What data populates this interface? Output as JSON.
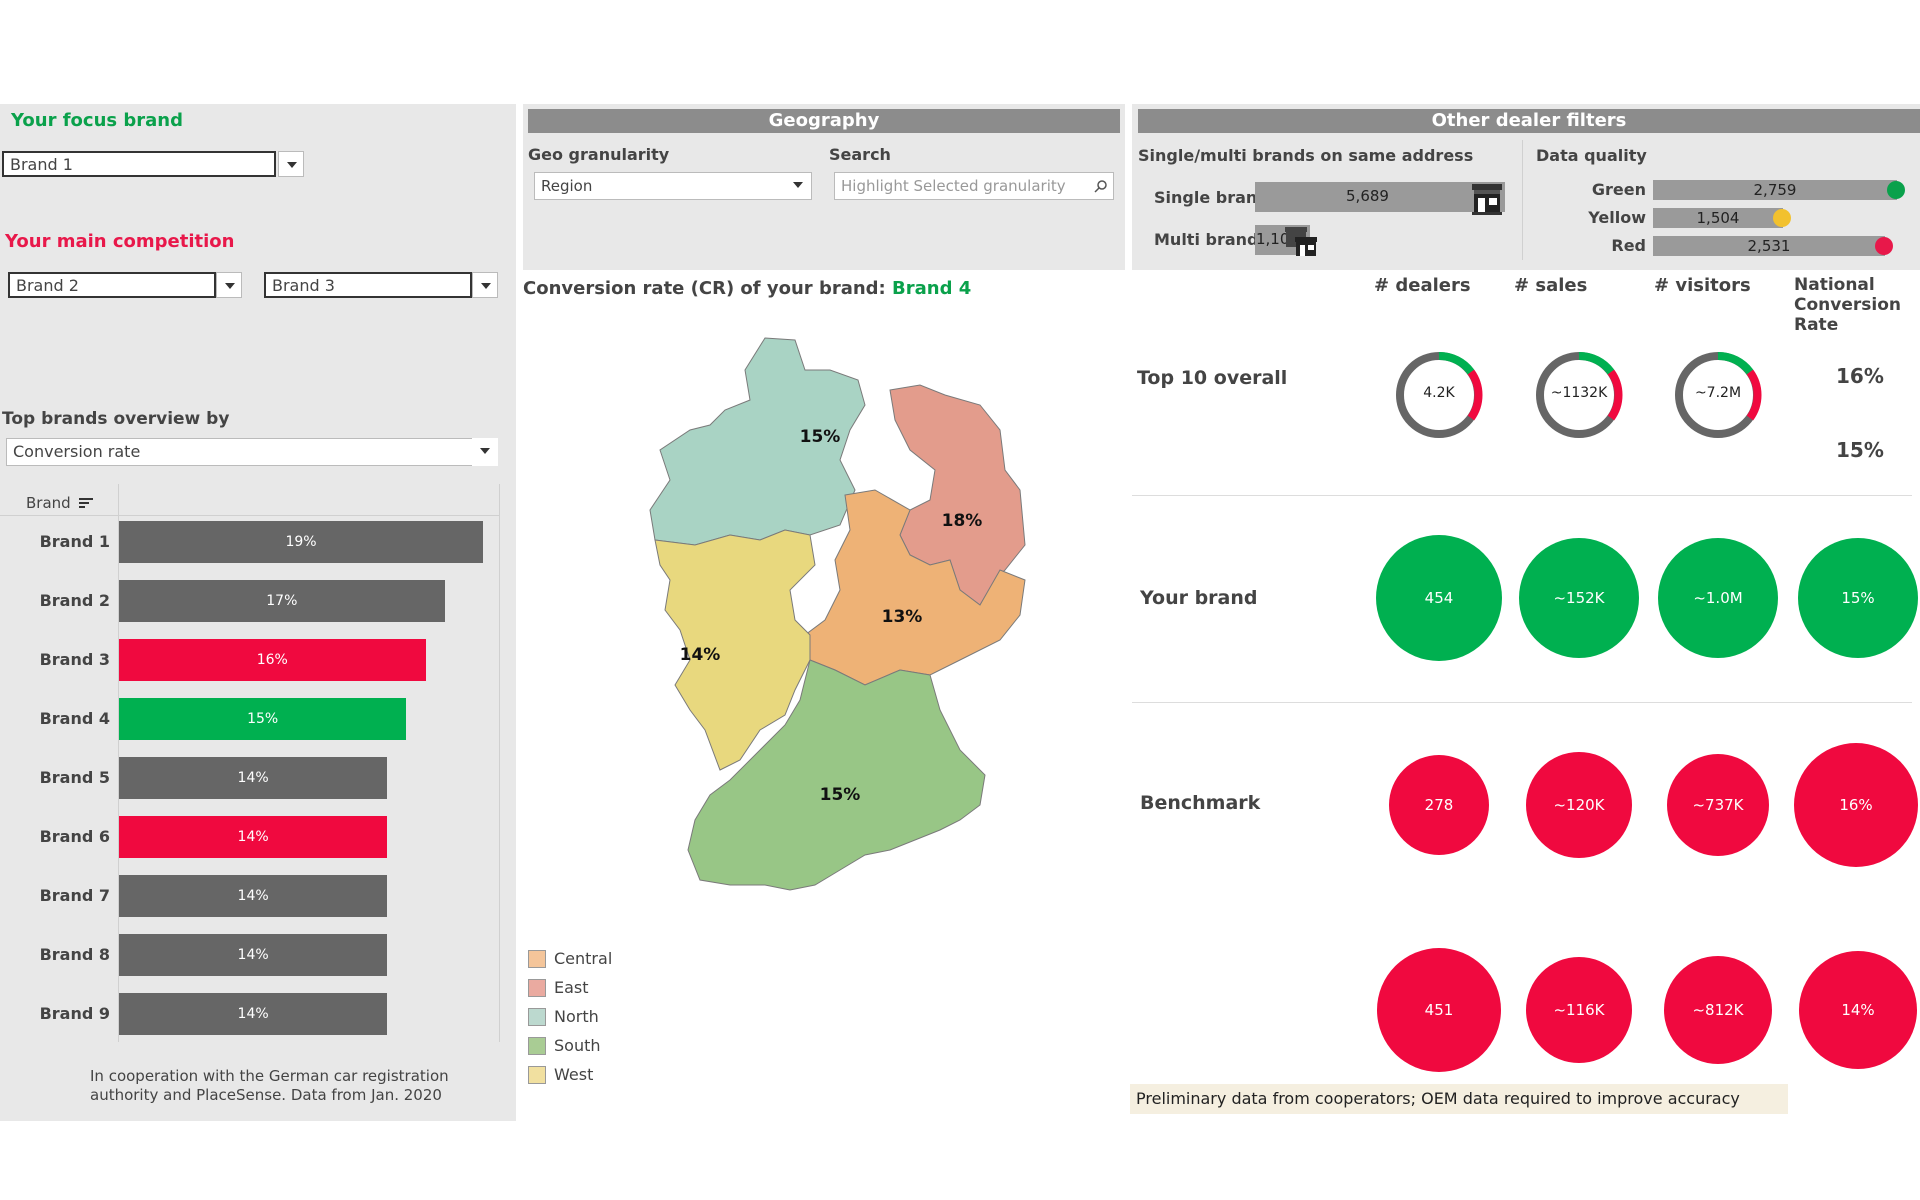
{
  "left": {
    "focus_title": "Your focus brand",
    "focus_value": "Brand 1",
    "competition_title": "Your main competition",
    "competition": [
      "Brand 2",
      "Brand 3"
    ],
    "overview_title": "Top brands overview by",
    "overview_value": "Conversion rate",
    "brand_col": "Brand",
    "footnote": "In cooperation with the German car registration authority and PlaceSense. Data from Jan. 2020"
  },
  "geography": {
    "title": "Geography",
    "gran_label": "Geo granularity",
    "gran_value": "Region",
    "search_label": "Search",
    "search_placeholder": "Highlight Selected granularity",
    "map_title": "Conversion rate (CR) of your brand:",
    "map_brand": "Brand 4",
    "regions": [
      {
        "name": "North",
        "value": "15%",
        "color": "#a9d3c4"
      },
      {
        "name": "East",
        "value": "18%",
        "color": "#e39c8c"
      },
      {
        "name": "Central",
        "value": "13%",
        "color": "#eeb276"
      },
      {
        "name": "West",
        "value": "14%",
        "color": "#e8d87e"
      },
      {
        "name": "South",
        "value": "15%",
        "color": "#98c686"
      }
    ],
    "legend": [
      {
        "label": "Central",
        "color": "#f4c59a"
      },
      {
        "label": "East",
        "color": "#eaaaa0"
      },
      {
        "label": "North",
        "color": "#bcd9cf"
      },
      {
        "label": "South",
        "color": "#a9cc94"
      },
      {
        "label": "West",
        "color": "#f1e0a0"
      }
    ]
  },
  "dealer": {
    "title": "Other dealer filters",
    "single_multi_title": "Single/multi brands on same address",
    "single_label": "Single brand",
    "single_value": "5,689",
    "multi_label": "Multi brands",
    "multi_value": "1,105",
    "dq_title": "Data quality",
    "dq": [
      {
        "label": "Green",
        "value": "2,759",
        "color": "#0aa14b"
      },
      {
        "label": "Yellow",
        "value": "1,504",
        "color": "#f2c12e"
      },
      {
        "label": "Red",
        "value": "2,531",
        "color": "#e8184a"
      }
    ]
  },
  "kpi": {
    "columns": [
      "# dealers",
      "# sales",
      "# visitors",
      "National Conversion Rate"
    ],
    "top10_label": "Top 10 overall",
    "top10_values": [
      "4.2K",
      "~1132K",
      "~7.2M"
    ],
    "top10_rates": [
      "16%",
      "15%"
    ],
    "your_brand_label": "Your brand",
    "your_brand": [
      "454",
      "~152K",
      "~1.0M",
      "15%"
    ],
    "benchmark_label": "Benchmark",
    "benchmark": [
      "278",
      "~120K",
      "~737K",
      "16%"
    ],
    "row4": [
      "451",
      "~116K",
      "~812K",
      "14%"
    ],
    "note": "Preliminary data from cooperators; OEM data required to improve accuracy",
    "green": "#00b050",
    "red": "#f0093f"
  },
  "chart_data": {
    "type": "bar",
    "categories": [
      "Brand 1",
      "Brand 2",
      "Brand 3",
      "Brand 4",
      "Brand 5",
      "Brand 6",
      "Brand 7",
      "Brand 8",
      "Brand 9"
    ],
    "values": [
      19,
      17,
      16,
      15,
      14,
      14,
      14,
      14,
      14
    ],
    "labels": [
      "19%",
      "17%",
      "16%",
      "15%",
      "14%",
      "14%",
      "14%",
      "14%",
      "14%"
    ],
    "colors": [
      "#666666",
      "#666666",
      "#f0093f",
      "#00b050",
      "#666666",
      "#f0093f",
      "#666666",
      "#666666",
      "#666666"
    ]
  }
}
